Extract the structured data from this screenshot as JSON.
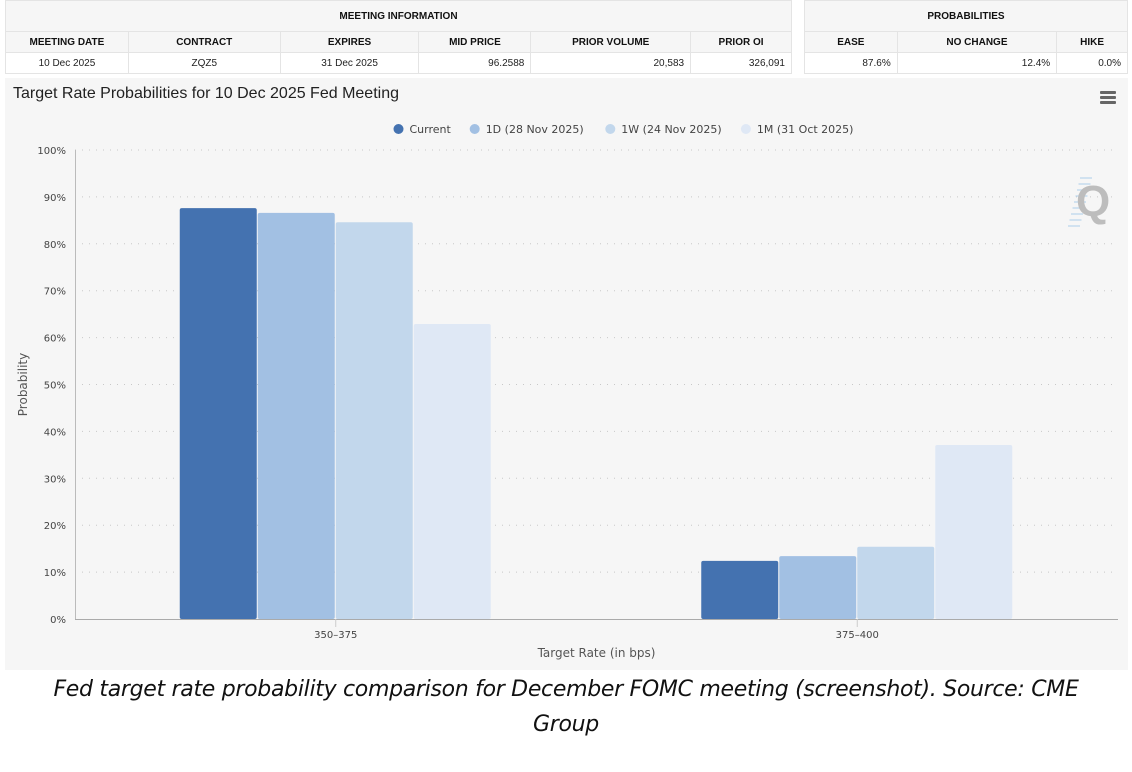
{
  "meeting_info": {
    "group_header": "MEETING INFORMATION",
    "columns": [
      "MEETING DATE",
      "CONTRACT",
      "EXPIRES",
      "MID PRICE",
      "PRIOR VOLUME",
      "PRIOR OI"
    ],
    "row": [
      "10 Dec 2025",
      "ZQZ5",
      "31 Dec 2025",
      "96.2588",
      "20,583",
      "326,091"
    ]
  },
  "probabilities": {
    "group_header": "PROBABILITIES",
    "columns": [
      "EASE",
      "NO CHANGE",
      "HIKE"
    ],
    "row": [
      "87.6%",
      "12.4%",
      "0.0%"
    ]
  },
  "menu_icon": "hamburger-menu-icon",
  "watermark": "Q",
  "caption": "Fed target rate probability comparison for December FOMC meeting (screenshot). Source: CME Group",
  "chart_data": {
    "type": "bar",
    "title": "Target Rate Probabilities for 10 Dec 2025 Fed Meeting",
    "xlabel": "Target Rate (in bps)",
    "ylabel": "Probability",
    "categories": [
      "350-375",
      "375-400"
    ],
    "ylim": [
      0,
      100
    ],
    "yticks": [
      0,
      10,
      20,
      30,
      40,
      50,
      60,
      70,
      80,
      90,
      100
    ],
    "ytick_suffix": "%",
    "grid": true,
    "legend_position": "top-center",
    "series": [
      {
        "name": "Current",
        "color": "#4472b0",
        "values": [
          87.6,
          12.4
        ]
      },
      {
        "name": "1D (28 Nov 2025)",
        "color": "#a2c0e3",
        "values": [
          86.6,
          13.4
        ]
      },
      {
        "name": "1W (24 Nov 2025)",
        "color": "#c2d7ec",
        "values": [
          84.6,
          15.4
        ]
      },
      {
        "name": "1M (31 Oct 2025)",
        "color": "#dfe8f5",
        "values": [
          62.9,
          37.1
        ]
      }
    ]
  }
}
